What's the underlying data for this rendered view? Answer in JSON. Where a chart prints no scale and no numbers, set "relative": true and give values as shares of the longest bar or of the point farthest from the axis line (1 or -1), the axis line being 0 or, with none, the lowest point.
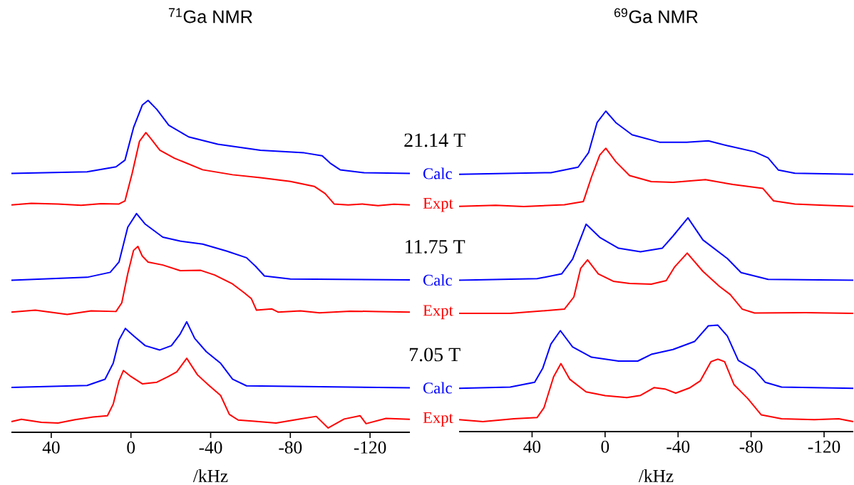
{
  "chart_data": [
    {
      "type": "line",
      "title": "$^{71}$Ga NMR",
      "xlabel": "/kHz",
      "relative": true,
      "xlim": [
        60,
        -140
      ],
      "xticks": [
        40,
        0,
        -40,
        -80,
        -120
      ],
      "annotations": [
        "21.14 T",
        "11.75 T",
        "7.05 T"
      ],
      "series": [
        {
          "name": "Calc",
          "color": "#0000ff",
          "x": [
            60,
            22,
            7.5,
            3,
            -1.4,
            -5.7,
            -8.6,
            -13,
            -19,
            -29,
            -43.6,
            -65,
            -87,
            -96,
            -100,
            -105,
            -117,
            -140
          ],
          "values": [
            0.78,
            0.785,
            0.8,
            0.82,
            0.92,
            0.986,
            1.0,
            0.973,
            0.925,
            0.89,
            0.868,
            0.85,
            0.842,
            0.833,
            0.811,
            0.791,
            0.782,
            0.78
          ]
        },
        {
          "name": "Expt",
          "color": "#ff0000",
          "x": [
            60,
            50,
            36.6,
            25,
            15,
            6,
            3,
            -0.6,
            -4.3,
            -7.5,
            -10,
            -14.5,
            -21.8,
            -36,
            -51,
            -65,
            -80,
            -92,
            -97.5,
            -102,
            -109,
            -116,
            -124,
            -132,
            -140
          ],
          "values": [
            0.685,
            0.69,
            0.688,
            0.684,
            0.689,
            0.688,
            0.697,
            0.78,
            0.877,
            0.903,
            0.885,
            0.85,
            0.826,
            0.791,
            0.776,
            0.767,
            0.756,
            0.741,
            0.719,
            0.688,
            0.685,
            0.688,
            0.683,
            0.687,
            0.685
          ]
        },
        {
          "name": "Calc",
          "color": "#0000ff",
          "x": [
            60,
            22,
            10.4,
            6,
            1.6,
            -2.8,
            -7.2,
            -16,
            -24.7,
            -36,
            -48,
            -58,
            -62.6,
            -67,
            -80,
            -140
          ],
          "values": [
            0.458,
            0.467,
            0.482,
            0.513,
            0.618,
            0.659,
            0.627,
            0.588,
            0.576,
            0.567,
            0.546,
            0.526,
            0.5,
            0.471,
            0.462,
            0.459
          ]
        },
        {
          "name": "Expt",
          "color": "#ff0000",
          "x": [
            60,
            48,
            32,
            20,
            7.5,
            4.6,
            1.6,
            -1.3,
            -3.5,
            -5.7,
            -8.6,
            -16,
            -24.7,
            -35,
            -42,
            -51,
            -56.7,
            -60.4,
            -63,
            -70.6,
            -74,
            -85,
            -94.6,
            -110,
            -124,
            -140
          ],
          "values": [
            0.362,
            0.368,
            0.355,
            0.366,
            0.364,
            0.39,
            0.478,
            0.548,
            0.56,
            0.531,
            0.513,
            0.504,
            0.487,
            0.488,
            0.474,
            0.447,
            0.421,
            0.403,
            0.368,
            0.372,
            0.362,
            0.366,
            0.36,
            0.365,
            0.364,
            0.362
          ]
        },
        {
          "name": "Calc",
          "color": "#0000ff",
          "x": [
            60,
            22,
            13,
            8.9,
            6,
            2.8,
            -1.3,
            -7.2,
            -14.5,
            -20.3,
            -24.7,
            -28,
            -32,
            -37.8,
            -45,
            -51,
            -58,
            -140
          ],
          "values": [
            0.135,
            0.141,
            0.16,
            0.208,
            0.278,
            0.313,
            0.291,
            0.261,
            0.248,
            0.261,
            0.296,
            0.333,
            0.283,
            0.243,
            0.208,
            0.16,
            0.14,
            0.134
          ]
        },
        {
          "name": "Expt",
          "color": "#ff0000",
          "x": [
            60,
            55,
            45,
            36.6,
            28,
            19,
            11.8,
            8.9,
            6,
            3.8,
            0,
            -5.7,
            -13,
            -18.8,
            -23,
            -28,
            -33.4,
            -39,
            -45,
            -49.4,
            -53.8,
            -62,
            -72.8,
            -85,
            -93,
            -99,
            -107,
            -115,
            -118,
            -128,
            -140
          ],
          "values": [
            0.032,
            0.039,
            0.03,
            0.028,
            0.038,
            0.046,
            0.05,
            0.085,
            0.155,
            0.186,
            0.168,
            0.146,
            0.151,
            0.168,
            0.182,
            0.223,
            0.173,
            0.142,
            0.111,
            0.054,
            0.037,
            0.033,
            0.028,
            0.04,
            0.048,
            0.013,
            0.04,
            0.05,
            0.026,
            0.042,
            0.039
          ]
        }
      ]
    },
    {
      "type": "line",
      "title": "$^{69}$Ga NMR",
      "xlabel": "/kHz",
      "relative": true,
      "xlim": [
        80,
        -136
      ],
      "xticks": [
        40,
        0,
        -40,
        -80,
        -120
      ],
      "series": [
        {
          "color": "#0000ff",
          "x": [
            80,
            29.7,
            14.8,
            9,
            4.4,
            -0.4,
            -5.9,
            -14.8,
            -29.8,
            -44.7,
            -56.6,
            -67,
            -81.9,
            -89.3,
            -95,
            -104,
            -136
          ],
          "values": [
            0.803,
            0.808,
            0.825,
            0.871,
            0.964,
            1.0,
            0.964,
            0.926,
            0.903,
            0.903,
            0.907,
            0.892,
            0.873,
            0.854,
            0.816,
            0.806,
            0.803
          ]
        },
        {
          "color": "#ff0000",
          "x": [
            80,
            60,
            44.6,
            22.3,
            11.9,
            7.4,
            2.9,
            -0.4,
            -5.9,
            -13.4,
            -25.3,
            -37.2,
            -55,
            -70,
            -86.4,
            -92.3,
            -104,
            -120,
            -136
          ],
          "values": [
            0.703,
            0.706,
            0.702,
            0.708,
            0.718,
            0.795,
            0.863,
            0.884,
            0.842,
            0.799,
            0.78,
            0.778,
            0.786,
            0.771,
            0.759,
            0.72,
            0.71,
            0.706,
            0.703
          ]
        },
        {
          "color": "#0000ff",
          "x": [
            80,
            37.2,
            23.8,
            17.8,
            10.4,
            2.9,
            -7.4,
            -19.4,
            -31.3,
            -37.2,
            -45.4,
            -53.6,
            -67,
            -74.5,
            -89.3,
            -136
          ],
          "values": [
            0.472,
            0.477,
            0.492,
            0.538,
            0.647,
            0.606,
            0.572,
            0.561,
            0.572,
            0.61,
            0.667,
            0.598,
            0.54,
            0.496,
            0.475,
            0.472
          ]
        },
        {
          "color": "#ff0000",
          "x": [
            80,
            52,
            22.3,
            17.1,
            13.4,
            9.6,
            3.7,
            -4.5,
            -13.4,
            -25.3,
            -33.5,
            -38,
            -45,
            -53.6,
            -62.5,
            -68.5,
            -75.2,
            -81.9,
            -110,
            -136
          ],
          "values": [
            0.369,
            0.369,
            0.382,
            0.42,
            0.509,
            0.536,
            0.492,
            0.469,
            0.462,
            0.46,
            0.471,
            0.513,
            0.557,
            0.5,
            0.454,
            0.428,
            0.382,
            0.37,
            0.371,
            0.369
          ]
        },
        {
          "color": "#0000ff",
          "x": [
            80,
            52,
            38.6,
            34.2,
            29.7,
            24.5,
            17.8,
            7.4,
            -7.4,
            -17.9,
            -25.3,
            -37.2,
            -49,
            -56.6,
            -61.8,
            -67,
            -73,
            -81.9,
            -87.7,
            -96.7,
            -136
          ],
          "values": [
            0.135,
            0.139,
            0.154,
            0.197,
            0.273,
            0.315,
            0.264,
            0.232,
            0.22,
            0.22,
            0.241,
            0.256,
            0.281,
            0.33,
            0.332,
            0.298,
            0.222,
            0.192,
            0.154,
            0.139,
            0.135
          ]
        },
        {
          "color": "#ff0000",
          "x": [
            80,
            67,
            50,
            37.2,
            33.5,
            28.2,
            24.2,
            19.3,
            10.4,
            0,
            -11.9,
            -19.4,
            -26.8,
            -32.8,
            -38.7,
            -46.2,
            -52.1,
            -58,
            -61.8,
            -65.5,
            -70.7,
            -78.2,
            -85.6,
            -96.7,
            -114.6,
            -128,
            -136
          ],
          "values": [
            0.037,
            0.031,
            0.04,
            0.044,
            0.074,
            0.171,
            0.212,
            0.163,
            0.124,
            0.112,
            0.106,
            0.113,
            0.137,
            0.133,
            0.12,
            0.136,
            0.158,
            0.218,
            0.226,
            0.218,
            0.146,
            0.103,
            0.052,
            0.04,
            0.037,
            0.04,
            0.031
          ]
        }
      ]
    }
  ]
}
